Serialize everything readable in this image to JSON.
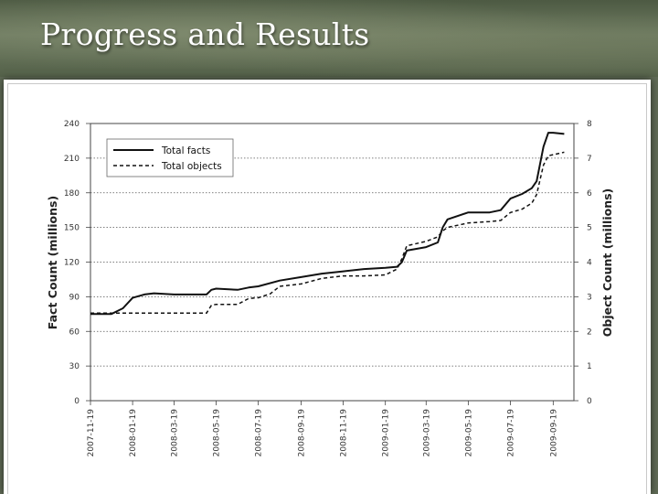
{
  "slide": {
    "title": "Progress and Results"
  },
  "chart_data": {
    "type": "line",
    "title": "",
    "xlabel": "",
    "ylabel": "Fact Count (millions)",
    "y2label": "Object Count (millions)",
    "ylim": [
      0,
      240
    ],
    "y2lim": [
      0,
      8
    ],
    "yticks": [
      0,
      30,
      60,
      90,
      120,
      150,
      180,
      210,
      240
    ],
    "y2ticks": [
      0,
      1,
      2,
      3,
      4,
      5,
      6,
      7,
      8
    ],
    "xticks": [
      "2007-11-19",
      "2008-01-19",
      "2008-03-19",
      "2008-05-19",
      "2008-07-19",
      "2008-09-19",
      "2008-11-19",
      "2009-01-19",
      "2009-03-19",
      "2009-05-19",
      "2009-07-19",
      "2009-09-19"
    ],
    "grid": "horizontal dotted",
    "legend": "top-left",
    "series": [
      {
        "name": "Total facts",
        "axis": "left",
        "style": "solid",
        "points": [
          [
            "2007-11-19",
            75
          ],
          [
            "2007-12-19",
            75
          ],
          [
            "2008-01-05",
            80
          ],
          [
            "2008-01-19",
            89
          ],
          [
            "2008-02-05",
            92
          ],
          [
            "2008-02-19",
            93
          ],
          [
            "2008-03-19",
            92
          ],
          [
            "2008-04-19",
            92
          ],
          [
            "2008-05-05",
            92
          ],
          [
            "2008-05-12",
            96
          ],
          [
            "2008-05-19",
            97
          ],
          [
            "2008-06-19",
            96
          ],
          [
            "2008-07-05",
            98
          ],
          [
            "2008-07-19",
            99
          ],
          [
            "2008-08-19",
            104
          ],
          [
            "2008-09-19",
            107
          ],
          [
            "2008-10-19",
            110
          ],
          [
            "2008-11-19",
            112
          ],
          [
            "2008-12-19",
            114
          ],
          [
            "2009-01-19",
            115
          ],
          [
            "2009-02-05",
            116
          ],
          [
            "2009-02-12",
            120
          ],
          [
            "2009-02-19",
            130
          ],
          [
            "2009-03-19",
            133
          ],
          [
            "2009-04-05",
            137
          ],
          [
            "2009-04-12",
            150
          ],
          [
            "2009-04-19",
            157
          ],
          [
            "2009-05-19",
            163
          ],
          [
            "2009-06-19",
            163
          ],
          [
            "2009-07-05",
            165
          ],
          [
            "2009-07-19",
            175
          ],
          [
            "2009-08-05",
            179
          ],
          [
            "2009-08-19",
            184
          ],
          [
            "2009-08-26",
            190
          ],
          [
            "2009-09-05",
            220
          ],
          [
            "2009-09-12",
            232
          ],
          [
            "2009-09-19",
            232
          ],
          [
            "2009-10-05",
            231
          ]
        ]
      },
      {
        "name": "Total objects",
        "axis": "right",
        "style": "dashed",
        "points": [
          [
            "2007-11-19",
            2.53
          ],
          [
            "2008-01-19",
            2.53
          ],
          [
            "2008-03-19",
            2.53
          ],
          [
            "2008-05-05",
            2.53
          ],
          [
            "2008-05-12",
            2.75
          ],
          [
            "2008-05-19",
            2.78
          ],
          [
            "2008-06-19",
            2.78
          ],
          [
            "2008-07-05",
            2.95
          ],
          [
            "2008-07-19",
            2.97
          ],
          [
            "2008-08-05",
            3.08
          ],
          [
            "2008-08-19",
            3.3
          ],
          [
            "2008-09-19",
            3.37
          ],
          [
            "2008-10-19",
            3.53
          ],
          [
            "2008-11-19",
            3.6
          ],
          [
            "2008-12-19",
            3.6
          ],
          [
            "2009-01-19",
            3.63
          ],
          [
            "2009-02-05",
            3.8
          ],
          [
            "2009-02-12",
            4.1
          ],
          [
            "2009-02-19",
            4.47
          ],
          [
            "2009-03-19",
            4.6
          ],
          [
            "2009-04-05",
            4.73
          ],
          [
            "2009-04-12",
            4.9
          ],
          [
            "2009-04-19",
            5.0
          ],
          [
            "2009-05-19",
            5.13
          ],
          [
            "2009-06-19",
            5.17
          ],
          [
            "2009-07-05",
            5.2
          ],
          [
            "2009-07-19",
            5.43
          ],
          [
            "2009-08-05",
            5.53
          ],
          [
            "2009-08-19",
            5.7
          ],
          [
            "2009-08-26",
            5.95
          ],
          [
            "2009-09-05",
            6.8
          ],
          [
            "2009-09-12",
            7.07
          ],
          [
            "2009-09-19",
            7.1
          ],
          [
            "2009-10-05",
            7.17
          ]
        ]
      }
    ]
  }
}
